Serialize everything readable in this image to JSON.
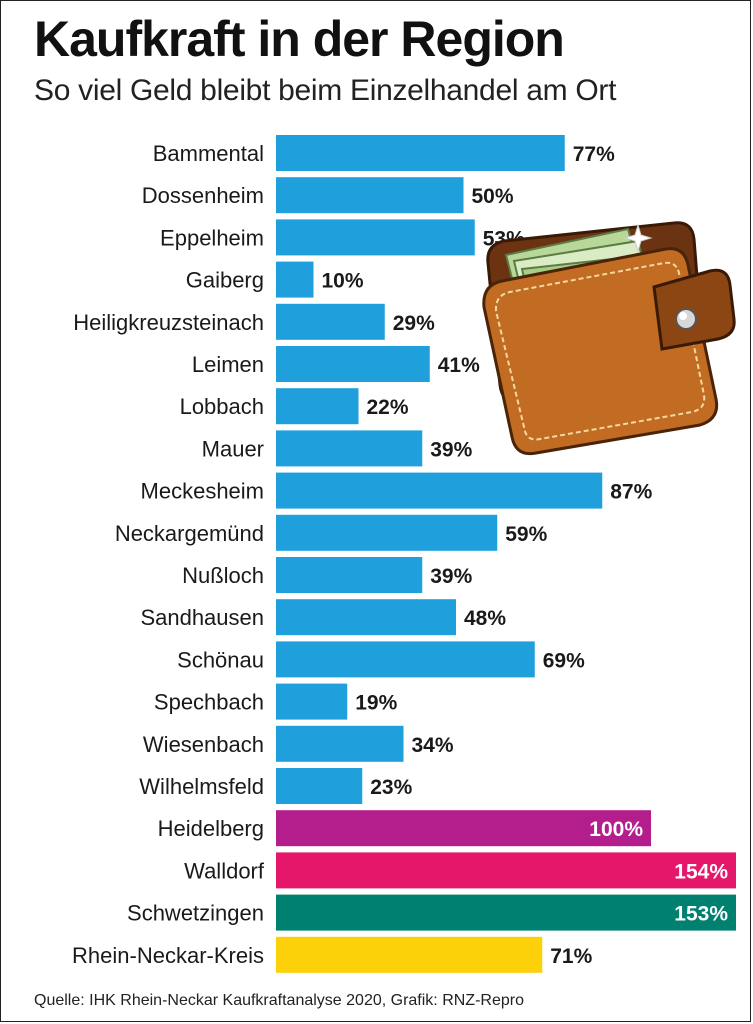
{
  "title": "Kaufkraft in der Region",
  "subtitle": "So viel Geld bleibt beim Einzelhandel am Ort",
  "source": "Quelle: IHK Rhein-Neckar Kaufkraftanalyse 2020, Grafik: RNZ-Repro",
  "colors": {
    "default": "#1f9fdb",
    "Heidelberg": "#b31e8c",
    "Walldorf": "#e5176b",
    "Schwetzingen": "#00806e",
    "Rhein-Neckar-Kreis": "#fcd10a"
  },
  "illustration": "wallet-with-money",
  "chart_data": {
    "type": "bar",
    "orientation": "horizontal",
    "categories": [
      "Bammental",
      "Dossenheim",
      "Eppelheim",
      "Gaiberg",
      "Heiligkreuzsteinach",
      "Leimen",
      "Lobbach",
      "Mauer",
      "Meckesheim",
      "Neckargemünd",
      "Nußloch",
      "Sandhausen",
      "Schönau",
      "Spechbach",
      "Wiesenbach",
      "Wilhelmsfeld",
      "Heidelberg",
      "Walldorf",
      "Schwetzingen",
      "Rhein-Neckar-Kreis"
    ],
    "values": [
      77,
      50,
      53,
      10,
      29,
      41,
      22,
      39,
      87,
      59,
      39,
      48,
      69,
      19,
      34,
      23,
      100,
      154,
      153,
      71
    ],
    "labels": [
      "77%",
      "50%",
      "53%",
      "10%",
      "29%",
      "41%",
      "22%",
      "39%",
      "87%",
      "59%",
      "39%",
      "48%",
      "69%",
      "19%",
      "34%",
      "23%",
      "100%",
      "154%",
      "153%",
      "71%"
    ],
    "unit": "%",
    "grid": false,
    "legend": "none"
  }
}
